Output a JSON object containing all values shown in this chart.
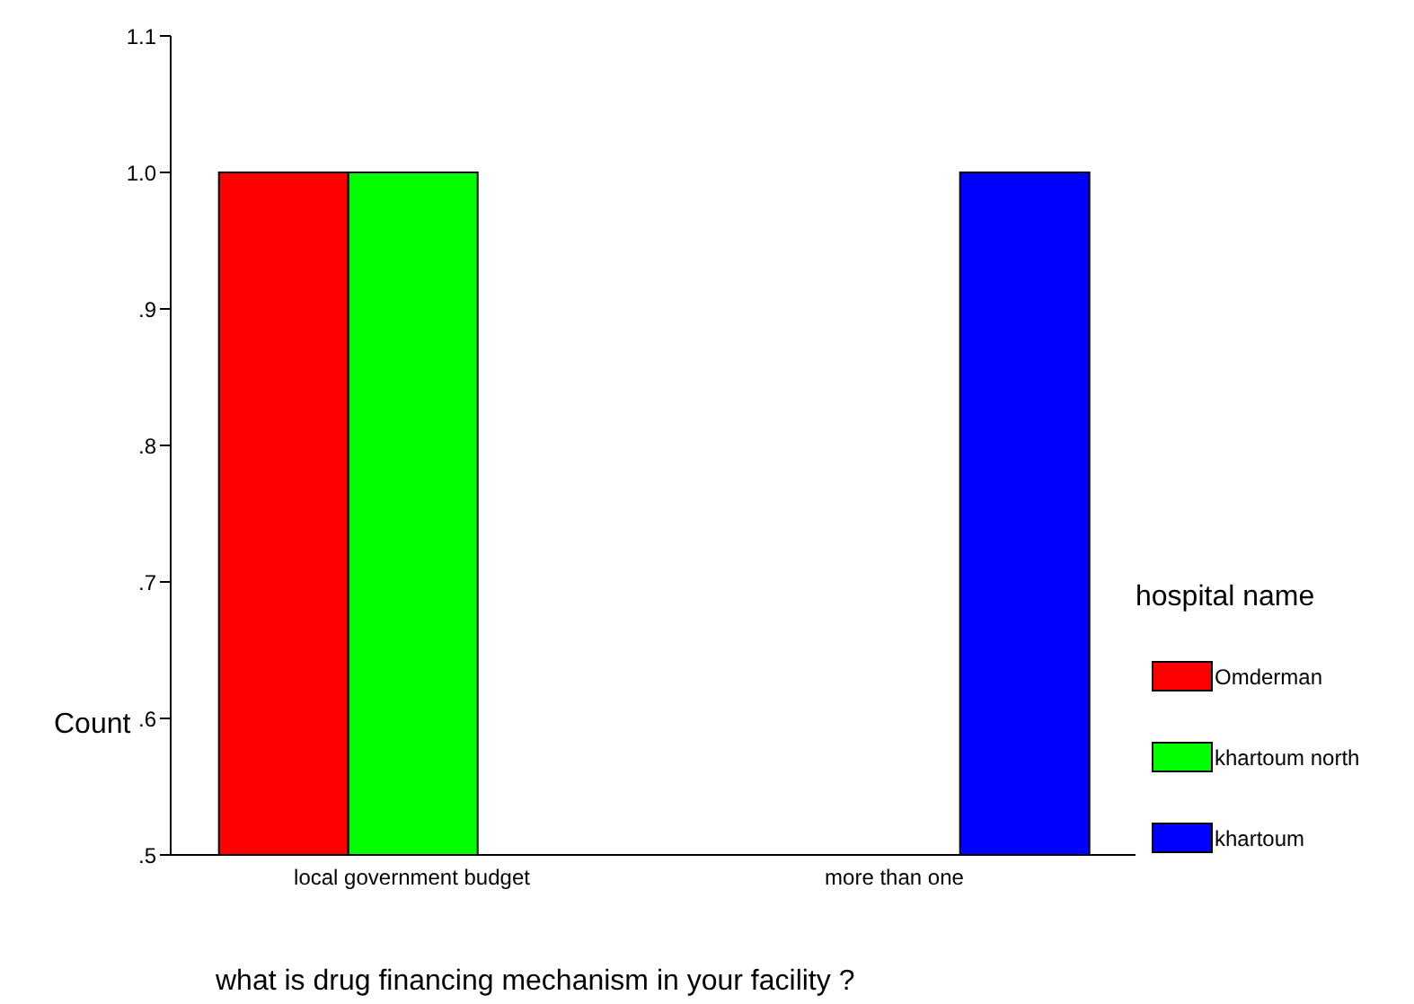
{
  "chart_data": {
    "type": "bar",
    "xlabel": "what is drug financing mechanism in your facility ?",
    "ylabel": "Count",
    "legend_title": "hospital name",
    "categories": [
      "local government budget",
      "more than one"
    ],
    "series": [
      {
        "name": "Omderman",
        "color": "#ff0000",
        "values": [
          1.0,
          null
        ]
      },
      {
        "name": "khartoum north",
        "color": "#00ff00",
        "values": [
          1.0,
          null
        ]
      },
      {
        "name": "khartoum",
        "color": "#0000ff",
        "values": [
          null,
          1.0
        ]
      }
    ],
    "ylim": [
      0.5,
      1.1
    ],
    "yticks": [
      {
        "value": 0.5,
        "label": ".5"
      },
      {
        "value": 0.6,
        "label": ".6"
      },
      {
        "value": 0.7,
        "label": ".7"
      },
      {
        "value": 0.8,
        "label": ".8"
      },
      {
        "value": 0.9,
        "label": ".9"
      },
      {
        "value": 1.0,
        "label": "1.0"
      },
      {
        "value": 1.1,
        "label": "1.1"
      }
    ],
    "legend": "right",
    "grid": false
  }
}
